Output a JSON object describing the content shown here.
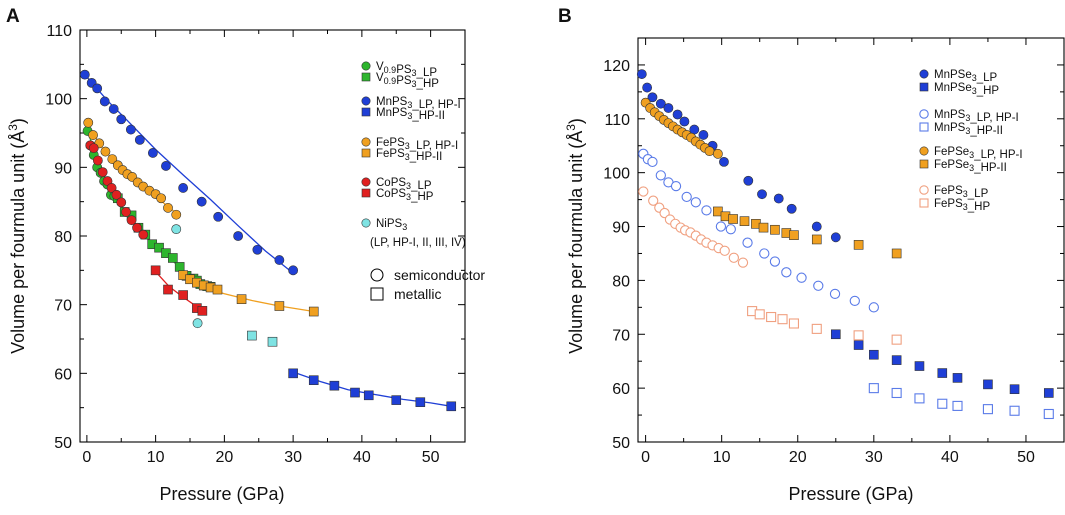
{
  "chart_data": [
    {
      "type": "scatter",
      "panel_label": "A",
      "xlabel": "Pressure (GPa)",
      "ylabel_main": "Volume per fourmula unit (Å",
      "ylabel_sup": "3",
      "ylabel_close": ")",
      "xlim": [
        -1,
        55
      ],
      "ylim": [
        50,
        110
      ],
      "xticks": [
        "0",
        "10",
        "20",
        "30",
        "40",
        "50"
      ],
      "yticks": [
        "50",
        "60",
        "70",
        "80",
        "90",
        "100",
        "110"
      ],
      "grid": false,
      "legend_position": "top-right",
      "series": [
        {
          "name": "V0.9PS3_LP",
          "marker": "circle",
          "filled": true,
          "color": "#2db52d",
          "x": [
            0.1,
            0.5,
            1.0,
            1.5,
            2.0,
            2.5,
            3.0,
            3.5,
            4.0
          ],
          "y": [
            95.3,
            93.2,
            91.8,
            90.0,
            89.2,
            88.0,
            87.5,
            86.0,
            85.8
          ]
        },
        {
          "name": "V0.9PS3_HP",
          "marker": "square",
          "filled": true,
          "color": "#2db52d",
          "x": [
            4.5,
            5.5,
            6.5,
            7.5,
            8.5,
            9.5,
            10.5,
            11.5,
            12.5,
            13.5,
            14.5,
            15.5,
            16.0,
            16.5,
            17.0,
            17.5,
            18.0
          ],
          "y": [
            85.5,
            83.5,
            83.0,
            81.2,
            80.2,
            78.8,
            78.3,
            77.5,
            76.8,
            75.5,
            74.2,
            73.8,
            73.5,
            73.0,
            72.8,
            72.7,
            72.6
          ]
        },
        {
          "name": "MnPS3_LP, HP-I",
          "marker": "circle",
          "filled": true,
          "color": "#1f3fd6",
          "x": [
            -0.3,
            0.7,
            1.5,
            2.6,
            3.9,
            5.0,
            6.4,
            7.7,
            9.6,
            11.5,
            14.0,
            16.7,
            19.1,
            22.0,
            24.8,
            28.0,
            30.0
          ],
          "y": [
            103.5,
            102.3,
            101.5,
            99.6,
            98.5,
            97.0,
            95.5,
            94.0,
            92.1,
            90.2,
            87.0,
            85.0,
            82.8,
            80.0,
            78.0,
            76.5,
            75.0
          ]
        },
        {
          "name": "MnPS3_HP-II",
          "marker": "square",
          "filled": true,
          "color": "#1f3fd6",
          "x": [
            30.0,
            33.0,
            36.0,
            39.0,
            41.0,
            45.0,
            48.5,
            53.0
          ],
          "y": [
            60.0,
            59.0,
            58.2,
            57.2,
            56.8,
            56.1,
            55.8,
            55.2
          ]
        },
        {
          "name": "FePS3_LP,  HP-I",
          "marker": "circle",
          "filled": true,
          "color": "#f0a020",
          "x": [
            0.2,
            0.9,
            1.8,
            2.7,
            3.7,
            4.5,
            5.2,
            5.9,
            6.6,
            7.4,
            8.2,
            9.1,
            10.0,
            10.8,
            11.8,
            13.0
          ],
          "y": [
            96.5,
            94.7,
            93.5,
            92.3,
            91.2,
            90.3,
            89.6,
            89.0,
            88.6,
            87.8,
            87.2,
            86.6,
            86.1,
            85.5,
            84.1,
            83.1
          ]
        },
        {
          "name": "FePS3_HP-II",
          "marker": "square",
          "filled": true,
          "color": "#f0a020",
          "x": [
            14.0,
            15.0,
            16.0,
            17.0,
            18.0,
            19.0,
            22.5,
            28.0,
            33.0
          ],
          "y": [
            74.3,
            73.7,
            73.2,
            72.8,
            72.5,
            72.2,
            70.8,
            69.8,
            69.0
          ]
        },
        {
          "name": "CoPS3_LP",
          "marker": "circle",
          "filled": true,
          "color": "#e02020",
          "x": [
            0.5,
            1.0,
            1.6,
            2.3,
            3.0,
            3.6,
            4.3,
            5.0,
            5.7,
            6.5,
            7.3,
            8.2
          ],
          "y": [
            93.2,
            92.8,
            91.0,
            89.3,
            88.0,
            87.0,
            86.0,
            84.9,
            83.5,
            82.3,
            81.2,
            80.2
          ]
        },
        {
          "name": "CoPS3_HP",
          "marker": "square",
          "filled": true,
          "color": "#e02020",
          "x": [
            10.0,
            11.8,
            14.0,
            16.0,
            16.8
          ],
          "y": [
            75.0,
            72.2,
            71.4,
            69.5,
            69.1
          ]
        },
        {
          "name": "NiPS3 (LP, HP-I, II, III, IV)",
          "marker": "circle",
          "filled": true,
          "color": "#7fe3e3",
          "x": [
            13.0,
            16.1
          ],
          "y": [
            81.0,
            67.3
          ]
        },
        {
          "name": "NiPS3 metallic",
          "marker": "square",
          "filled": true,
          "color": "#7fe3e3",
          "x": [
            24.0,
            27.0
          ],
          "y": [
            65.5,
            64.6
          ]
        }
      ],
      "fit_curves": [
        {
          "color": "#1f3fd6",
          "x": [
            -0.3,
            3,
            6,
            10,
            14,
            18,
            22,
            26,
            30
          ],
          "y": [
            103.5,
            99.7,
            96.7,
            92.6,
            88.9,
            85.3,
            81.5,
            77.8,
            74.6
          ]
        },
        {
          "color": "#1f3fd6",
          "x": [
            30,
            34,
            38,
            42,
            46,
            50,
            53
          ],
          "y": [
            60.2,
            58.8,
            57.6,
            56.9,
            56.2,
            55.7,
            55.2
          ]
        },
        {
          "color": "#f0a020",
          "x": [
            0.2,
            2,
            4,
            6,
            8,
            10,
            12,
            13.2
          ],
          "y": [
            96.2,
            93.1,
            90.9,
            89.0,
            87.3,
            85.8,
            84.1,
            83.2
          ]
        },
        {
          "color": "#f0a020",
          "x": [
            14,
            16,
            18,
            20,
            24,
            28,
            33
          ],
          "y": [
            74.3,
            73.1,
            72.2,
            71.6,
            70.6,
            69.8,
            69.0
          ]
        },
        {
          "color": "#e02020",
          "x": [
            0.3,
            2,
            4,
            6,
            8.3
          ],
          "y": [
            93.2,
            89.5,
            85.9,
            83.0,
            80.2
          ]
        },
        {
          "color": "#e02020",
          "x": [
            10,
            12,
            14,
            16,
            16.8
          ],
          "y": [
            74.8,
            72.6,
            71.1,
            69.7,
            69.1
          ]
        },
        {
          "color": "#2db52d",
          "x": [
            0.1,
            2,
            4,
            6,
            8,
            10,
            12,
            14,
            16,
            18
          ],
          "y": [
            95.3,
            89.6,
            85.8,
            82.9,
            80.4,
            78.4,
            76.8,
            75.0,
            73.5,
            72.6
          ]
        }
      ]
    },
    {
      "type": "scatter",
      "panel_label": "B",
      "xlabel": "Pressure (GPa)",
      "ylabel_main": "Volume per fourmula unit (Å",
      "ylabel_sup": "3",
      "ylabel_close": ")",
      "xlim": [
        -1,
        55
      ],
      "ylim": [
        50,
        125
      ],
      "xticks": [
        "0",
        "10",
        "20",
        "30",
        "40",
        "50"
      ],
      "yticks": [
        "50",
        "60",
        "70",
        "80",
        "90",
        "100",
        "110",
        "120"
      ],
      "grid": false,
      "legend_position": "top-right",
      "series": [
        {
          "name": "MnPSe3_LP",
          "marker": "circle",
          "filled": true,
          "color": "#1f3fd6",
          "x": [
            -0.5,
            0.2,
            0.9,
            2.0,
            3.0,
            4.2,
            5.1,
            6.4,
            7.6,
            8.8,
            10.3,
            13.5,
            15.3,
            17.5,
            19.2,
            22.5,
            25.0
          ],
          "y": [
            118.3,
            115.8,
            114.0,
            112.8,
            112.0,
            110.8,
            109.5,
            108.0,
            107.0,
            105.0,
            102.0,
            98.5,
            96.0,
            95.2,
            93.3,
            90.0,
            88.0
          ]
        },
        {
          "name": "MnPSe3_HP",
          "marker": "square",
          "filled": true,
          "color": "#1f3fd6",
          "x": [
            25.0,
            28.0,
            30.0,
            33.0,
            36.0,
            39.0,
            41.0,
            45.0,
            48.5,
            53.0
          ],
          "y": [
            70.0,
            68.0,
            66.2,
            65.2,
            64.1,
            62.8,
            61.9,
            60.7,
            59.8,
            59.1
          ]
        },
        {
          "name": "MnPS3_LP, HP-I",
          "marker": "circle",
          "filled": false,
          "color": "#5a7be8",
          "x": [
            -0.3,
            0.3,
            0.9,
            2.0,
            3.0,
            4.0,
            5.4,
            6.6,
            8.0,
            9.9,
            11.2,
            13.4,
            15.6,
            17.0,
            18.5,
            20.5,
            22.7,
            24.9,
            27.5,
            30.0
          ],
          "y": [
            103.5,
            102.5,
            102.0,
            99.5,
            98.2,
            97.5,
            95.5,
            94.5,
            93.0,
            90.0,
            89.5,
            87.0,
            85.0,
            83.5,
            81.5,
            80.5,
            79.0,
            77.5,
            76.2,
            75.0
          ]
        },
        {
          "name": "MnPS3_HP-II",
          "marker": "square",
          "filled": false,
          "color": "#5a7be8",
          "x": [
            30.0,
            33.0,
            36.0,
            39.0,
            41.0,
            45.0,
            48.5,
            53.0
          ],
          "y": [
            60.0,
            59.1,
            58.1,
            57.1,
            56.7,
            56.1,
            55.8,
            55.2
          ]
        },
        {
          "name": "FePSe3_LP, HP-I",
          "marker": "circle",
          "filled": true,
          "color": "#f0a020",
          "x": [
            0.0,
            0.6,
            1.2,
            1.8,
            2.4,
            3.0,
            3.6,
            4.2,
            4.8,
            5.4,
            6.0,
            6.6,
            7.2,
            7.8,
            8.4,
            9.5
          ],
          "y": [
            113.0,
            112.0,
            111.2,
            110.5,
            109.8,
            109.2,
            108.6,
            108.0,
            107.5,
            107.0,
            106.5,
            105.8,
            105.2,
            104.6,
            104.0,
            103.5
          ]
        },
        {
          "name": "FePSe3_HP-II",
          "marker": "square",
          "filled": true,
          "color": "#f0a020",
          "x": [
            9.5,
            10.5,
            11.5,
            13.0,
            14.5,
            15.5,
            17.0,
            18.5,
            19.5,
            22.5,
            28.0,
            33.0
          ],
          "y": [
            92.8,
            91.9,
            91.4,
            91.0,
            90.5,
            89.8,
            89.4,
            88.8,
            88.4,
            87.6,
            86.6,
            85.0
          ]
        },
        {
          "name": "FePS3_LP",
          "marker": "circle",
          "filled": false,
          "color": "#f0a080",
          "x": [
            -0.3,
            1.0,
            1.8,
            2.5,
            3.2,
            3.9,
            4.6,
            5.2,
            5.9,
            6.6,
            7.3,
            8.0,
            8.8,
            9.6,
            10.4,
            11.6,
            12.8
          ],
          "y": [
            96.5,
            94.8,
            93.5,
            92.5,
            91.3,
            90.5,
            89.8,
            89.3,
            88.9,
            88.3,
            87.6,
            87.0,
            86.5,
            86.0,
            85.5,
            84.2,
            83.3
          ]
        },
        {
          "name": "FePS3_HP",
          "marker": "square",
          "filled": false,
          "color": "#f0a080",
          "x": [
            14.0,
            15.0,
            16.5,
            18.0,
            19.5,
            22.5,
            28.0,
            33.0
          ],
          "y": [
            74.3,
            73.7,
            73.2,
            72.8,
            72.0,
            71.0,
            69.8,
            69.0
          ]
        }
      ]
    }
  ],
  "legend_a": [
    {
      "label": "V",
      "sub1": "0.9",
      "mid": "PS",
      "sub2": "3",
      "tail": "_LP",
      "marker": "circle",
      "filled": true,
      "color": "#2db52d"
    },
    {
      "label": "V",
      "sub1": "0.9",
      "mid": "PS",
      "sub2": "3",
      "tail": "_HP",
      "marker": "square",
      "filled": true,
      "color": "#2db52d"
    },
    {
      "label": "MnPS",
      "sub1": "",
      "mid": "",
      "sub2": "3",
      "tail": "_LP, HP-I",
      "marker": "circle",
      "filled": true,
      "color": "#1f3fd6"
    },
    {
      "label": "MnPS",
      "sub1": "",
      "mid": "",
      "sub2": "3",
      "tail": "_HP-II",
      "marker": "square",
      "filled": true,
      "color": "#1f3fd6"
    },
    {
      "label": "FePS",
      "sub1": "",
      "mid": "",
      "sub2": "3",
      "tail": "_LP,  HP-I",
      "marker": "circle",
      "filled": true,
      "color": "#f0a020"
    },
    {
      "label": "FePS",
      "sub1": "",
      "mid": "",
      "sub2": "3",
      "tail": "_HP-II",
      "marker": "square",
      "filled": true,
      "color": "#f0a020"
    },
    {
      "label": "CoPS",
      "sub1": "",
      "mid": "",
      "sub2": "3",
      "tail": "_LP",
      "marker": "circle",
      "filled": true,
      "color": "#e02020"
    },
    {
      "label": "CoPS",
      "sub1": "",
      "mid": "",
      "sub2": "3",
      "tail": "_HP",
      "marker": "square",
      "filled": true,
      "color": "#e02020"
    },
    {
      "label": "NiPS",
      "sub1": "",
      "mid": "",
      "sub2": "3",
      "tail": "",
      "marker": "circle",
      "filled": true,
      "color": "#7fe3e3"
    }
  ],
  "legend_a_note": "(LP, HP-I, II,  III,  IV)",
  "legend_a_semiconductor": "semiconductor",
  "legend_a_metallic": "metallic",
  "legend_b": [
    {
      "label": "MnPSe",
      "sub2": "3",
      "tail": "_LP",
      "marker": "circle",
      "filled": true,
      "color": "#1f3fd6"
    },
    {
      "label": "MnPSe",
      "sub2": "3",
      "tail": "_HP",
      "marker": "square",
      "filled": true,
      "color": "#1f3fd6"
    },
    {
      "label": "MnPS",
      "sub2": "3",
      "tail": "_LP, HP-I",
      "marker": "circle",
      "filled": false,
      "color": "#5a7be8"
    },
    {
      "label": "MnPS",
      "sub2": "3",
      "tail": "_HP-II",
      "marker": "square",
      "filled": false,
      "color": "#5a7be8"
    },
    {
      "label": "FePSe",
      "sub2": "3",
      "tail": "_LP, HP-I",
      "marker": "circle",
      "filled": true,
      "color": "#f0a020"
    },
    {
      "label": "FePSe",
      "sub2": "3",
      "tail": "_HP-II",
      "marker": "square",
      "filled": true,
      "color": "#f0a020"
    },
    {
      "label": "FePS",
      "sub2": "3",
      "tail": "_LP",
      "marker": "circle",
      "filled": false,
      "color": "#f0a080"
    },
    {
      "label": "FePS",
      "sub2": "3",
      "tail": "_HP",
      "marker": "square",
      "filled": false,
      "color": "#f0a080"
    }
  ]
}
